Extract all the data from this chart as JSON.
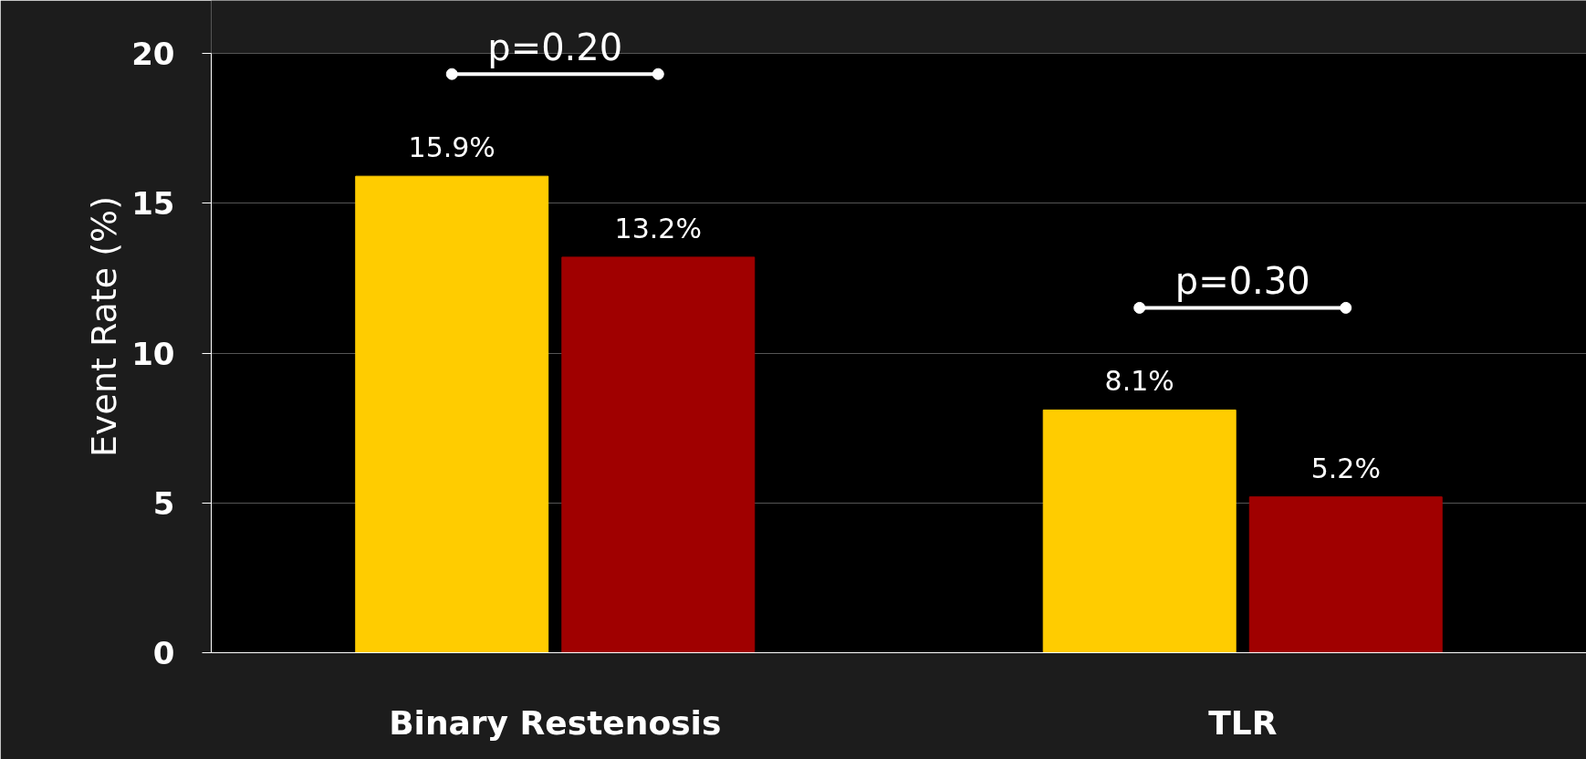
{
  "chart_data": {
    "type": "bar",
    "ylabel": "Event Rate (%)",
    "categories": [
      "Binary Restenosis",
      "TLR"
    ],
    "series": [
      {
        "color": "#ffcc00",
        "values": [
          15.9,
          8.1
        ],
        "value_labels": [
          "15.9%",
          "8.1%"
        ]
      },
      {
        "color": "#a00000",
        "values": [
          13.2,
          5.2
        ],
        "value_labels": [
          "13.2%",
          "5.2%"
        ]
      }
    ],
    "ylim": [
      0,
      20
    ],
    "yticks": [
      0,
      5,
      10,
      15,
      20
    ],
    "grid": "y",
    "annotations": [
      "p=0.20",
      "p=0.30"
    ]
  }
}
